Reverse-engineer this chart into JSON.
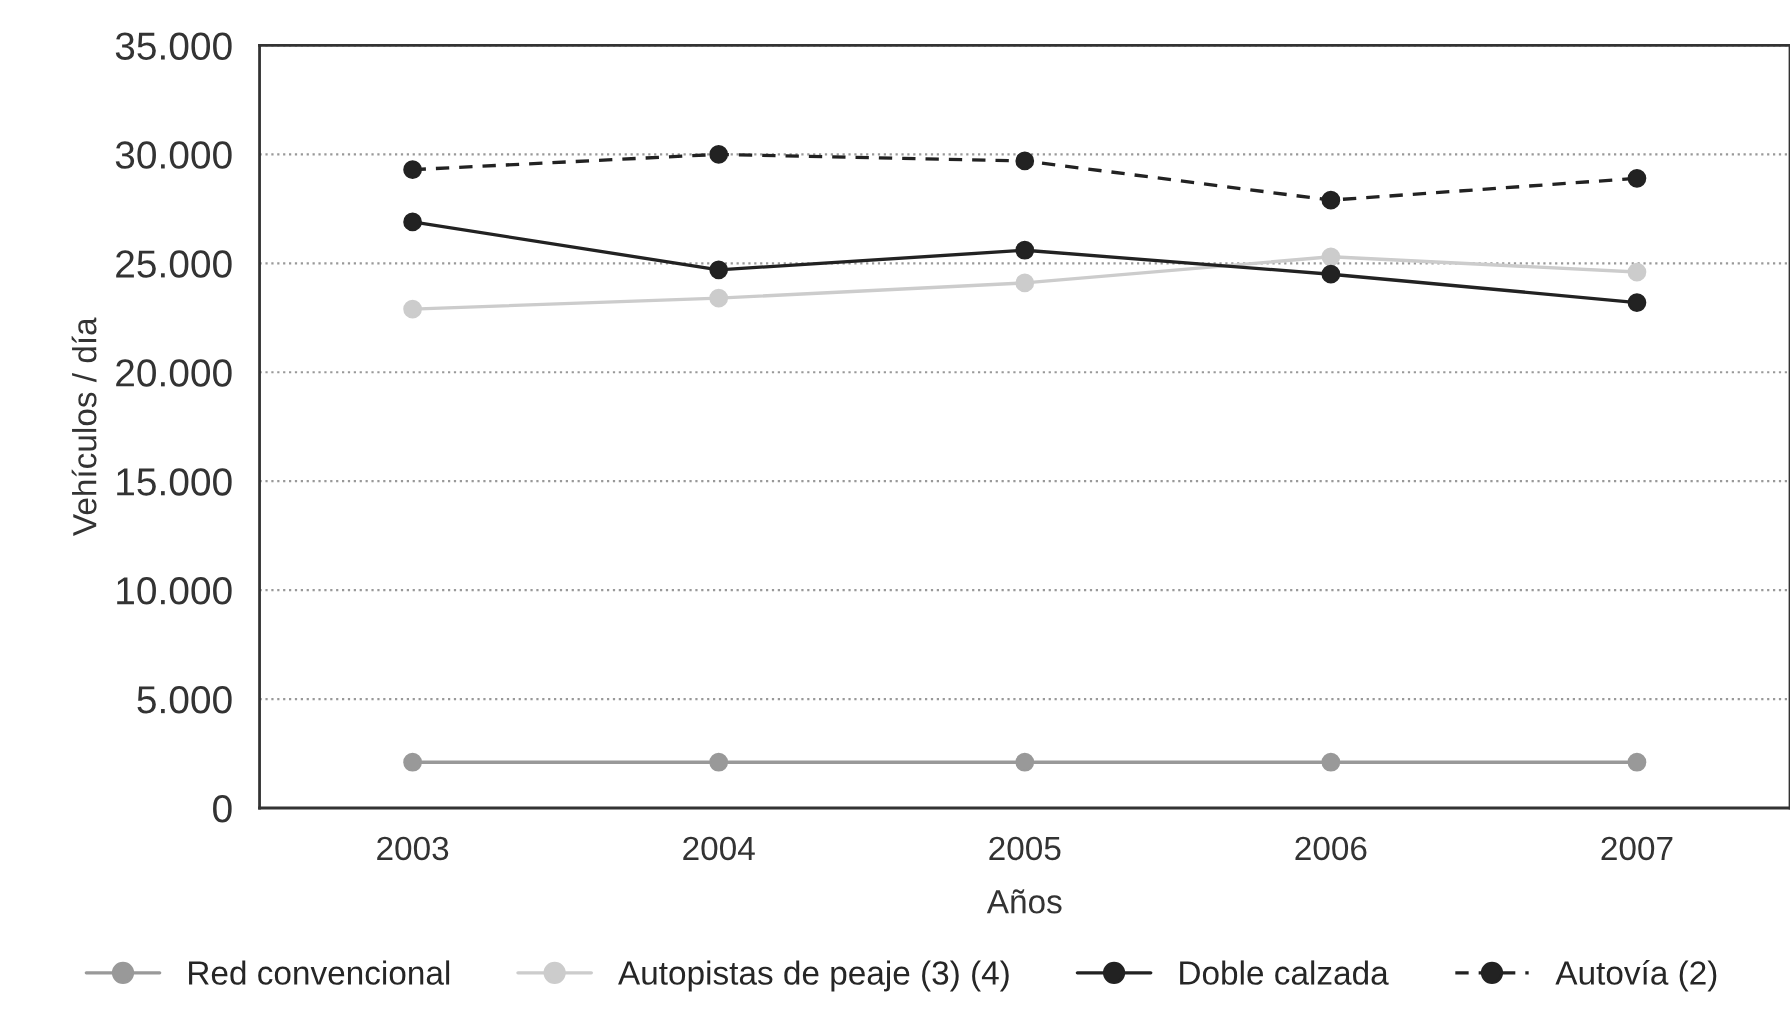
{
  "chart_data": {
    "type": "line",
    "xlabel": "Años",
    "ylabel": "Vehículos / día",
    "categories": [
      "2003",
      "2004",
      "2005",
      "2006",
      "2007"
    ],
    "series": [
      {
        "name": "Red convencional",
        "color": "#999999",
        "values": [
          2100,
          2100,
          2100,
          2100,
          2100
        ],
        "line_style": "solid"
      },
      {
        "name": "Autopistas de peaje (3) (4)",
        "color": "#cccccc",
        "values": [
          22900,
          23400,
          24100,
          25300,
          24600
        ],
        "line_style": "solid"
      },
      {
        "name": "Doble calzada",
        "color": "#222222",
        "values": [
          26900,
          24700,
          25600,
          24500,
          23200
        ],
        "line_style": "solid"
      },
      {
        "name": "Autovía (2)",
        "color": "#222222",
        "values": [
          29300,
          30000,
          29700,
          27900,
          28900
        ],
        "line_style": "dashed"
      }
    ],
    "ylim": [
      0,
      35000
    ],
    "yticks": [
      {
        "value": 0,
        "label": "0"
      },
      {
        "value": 5000,
        "label": "5.000"
      },
      {
        "value": 10000,
        "label": "10.000"
      },
      {
        "value": 15000,
        "label": "15.000"
      },
      {
        "value": 20000,
        "label": "20.000"
      },
      {
        "value": 25000,
        "label": "25.000"
      },
      {
        "value": 30000,
        "label": "30.000"
      },
      {
        "value": 35000,
        "label": "35.000"
      }
    ],
    "grid": "y",
    "legend": "bottom",
    "marker": "circle"
  }
}
